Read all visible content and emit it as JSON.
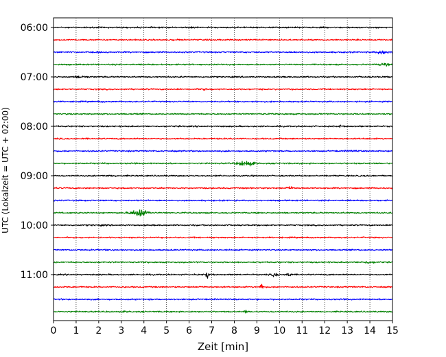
{
  "chart_data": {
    "type": "line",
    "title": "",
    "xlabel": "Zeit  [min]",
    "ylabel": "UTC (Lokalzeit = UTC + 02:00)",
    "xlim": [
      0,
      15
    ],
    "x_ticks": [
      "0",
      "1",
      "2",
      "3",
      "4",
      "5",
      "6",
      "7",
      "8",
      "9",
      "10",
      "11",
      "12",
      "13",
      "14",
      "15"
    ],
    "y_ticks": [
      {
        "label": "06:00",
        "row": 0
      },
      {
        "label": "07:00",
        "row": 4
      },
      {
        "label": "08:00",
        "row": 8
      },
      {
        "label": "09:00",
        "row": 12
      },
      {
        "label": "10:00",
        "row": 16
      },
      {
        "label": "11:00",
        "row": 20
      }
    ],
    "grid": "vertical-dotted",
    "row_interval_minutes": 15,
    "colors": [
      "#000000",
      "#ff0000",
      "#0000ff",
      "#008000"
    ],
    "rows": [
      {
        "start": "06:00",
        "color": "#000000",
        "events": [
          {
            "t": 6.1,
            "amp": 1.6,
            "dur": 0.4
          }
        ]
      },
      {
        "start": "06:15",
        "color": "#ff0000",
        "events": [
          {
            "t": 5.2,
            "amp": 1.3,
            "dur": 1.2
          }
        ]
      },
      {
        "start": "06:30",
        "color": "#0000ff",
        "events": [
          {
            "t": 2.0,
            "amp": 1.4,
            "dur": 0.3
          },
          {
            "t": 10.7,
            "amp": 1.6,
            "dur": 0.5
          },
          {
            "t": 14.6,
            "amp": 3.5,
            "dur": 0.8
          }
        ]
      },
      {
        "start": "06:45",
        "color": "#008000",
        "events": [
          {
            "t": 14.6,
            "amp": 2.5,
            "dur": 0.6
          }
        ]
      },
      {
        "start": "07:00",
        "color": "#000000",
        "events": [
          {
            "t": 1.2,
            "amp": 2.2,
            "dur": 0.8
          }
        ]
      },
      {
        "start": "07:15",
        "color": "#ff0000",
        "events": [
          {
            "t": 6.7,
            "amp": 1.6,
            "dur": 0.8
          }
        ]
      },
      {
        "start": "07:30",
        "color": "#0000ff",
        "events": [
          {
            "t": 2.1,
            "amp": 1.3,
            "dur": 0.5
          },
          {
            "t": 9.0,
            "amp": 1.8,
            "dur": 0.2
          }
        ]
      },
      {
        "start": "07:45",
        "color": "#008000",
        "events": []
      },
      {
        "start": "08:00",
        "color": "#000000",
        "events": [
          {
            "t": 12.7,
            "amp": 2.5,
            "dur": 0.15
          }
        ]
      },
      {
        "start": "08:15",
        "color": "#ff0000",
        "events": []
      },
      {
        "start": "08:30",
        "color": "#0000ff",
        "events": [
          {
            "t": 13.2,
            "amp": 1.6,
            "dur": 0.8
          }
        ]
      },
      {
        "start": "08:45",
        "color": "#008000",
        "events": [
          {
            "t": 8.5,
            "amp": 5.0,
            "dur": 0.9
          }
        ]
      },
      {
        "start": "09:00",
        "color": "#000000",
        "events": [
          {
            "t": 2.5,
            "amp": 1.4,
            "dur": 0.9
          }
        ]
      },
      {
        "start": "09:15",
        "color": "#ff0000",
        "events": [
          {
            "t": 10.5,
            "amp": 2.2,
            "dur": 0.7
          }
        ]
      },
      {
        "start": "09:30",
        "color": "#0000ff",
        "events": []
      },
      {
        "start": "09:45",
        "color": "#008000",
        "events": [
          {
            "t": 3.8,
            "amp": 6.5,
            "dur": 1.0
          }
        ]
      },
      {
        "start": "10:00",
        "color": "#000000",
        "events": [
          {
            "t": 2.0,
            "amp": 1.4,
            "dur": 1.0
          }
        ]
      },
      {
        "start": "10:15",
        "color": "#ff0000",
        "events": []
      },
      {
        "start": "10:30",
        "color": "#0000ff",
        "events": []
      },
      {
        "start": "10:45",
        "color": "#008000",
        "events": [
          {
            "t": 13.9,
            "amp": 2.2,
            "dur": 0.9
          }
        ]
      },
      {
        "start": "11:00",
        "color": "#000000",
        "events": [
          {
            "t": 6.8,
            "amp": 8.0,
            "dur": 0.15
          },
          {
            "t": 9.8,
            "amp": 4.0,
            "dur": 0.3
          },
          {
            "t": 10.4,
            "amp": 9.0,
            "dur": 0.2
          }
        ]
      },
      {
        "start": "11:15",
        "color": "#ff0000",
        "events": [
          {
            "t": 6.6,
            "amp": 1.5,
            "dur": 0.3
          },
          {
            "t": 9.2,
            "amp": 9.0,
            "dur": 0.15
          }
        ]
      },
      {
        "start": "11:30",
        "color": "#0000ff",
        "events": [
          {
            "t": 12.3,
            "amp": 1.4,
            "dur": 0.2
          }
        ]
      },
      {
        "start": "11:45",
        "color": "#008000",
        "events": [
          {
            "t": 8.5,
            "amp": 3.5,
            "dur": 0.15
          },
          {
            "t": 3.2,
            "amp": 1.3,
            "dur": 0.5
          }
        ]
      }
    ]
  }
}
